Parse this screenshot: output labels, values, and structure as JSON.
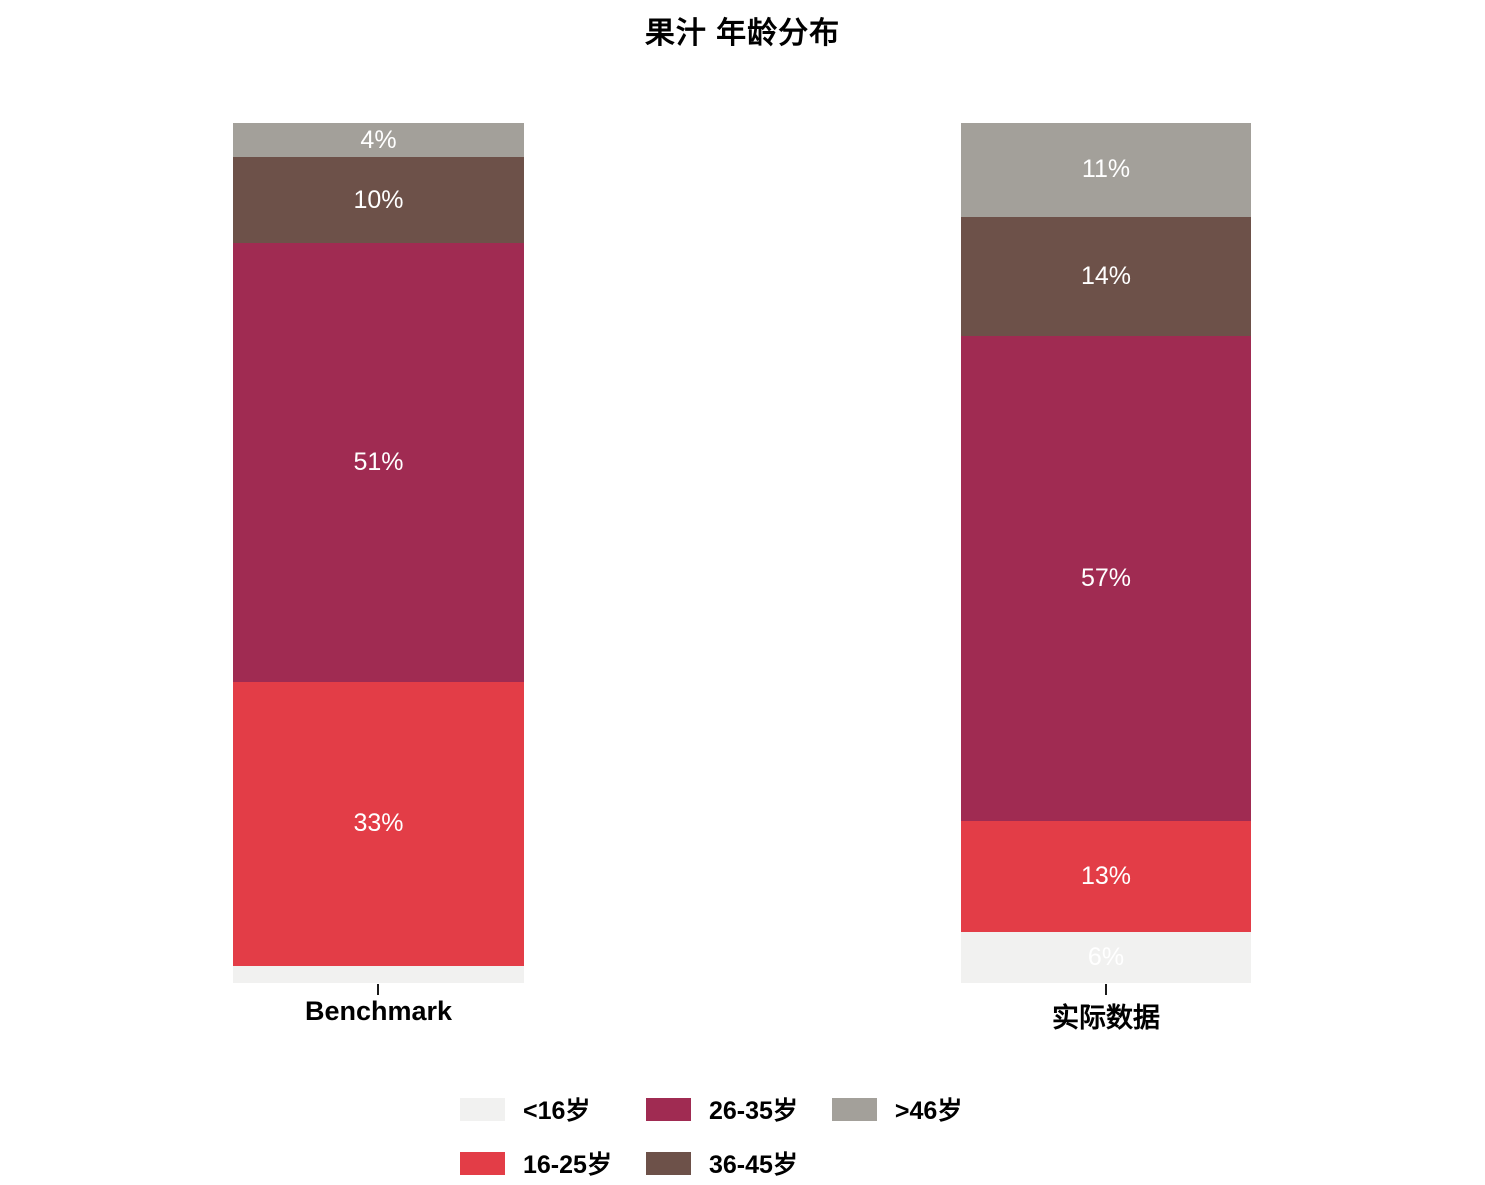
{
  "chart_data": {
    "type": "bar",
    "subtype": "stacked-percentage",
    "title": "果汁 年龄分布",
    "categories": [
      "Benchmark",
      "实际数据"
    ],
    "series": [
      {
        "name": "<16岁",
        "color": "#f1f1f0",
        "values": [
          2,
          6
        ],
        "labels": [
          "",
          "6%"
        ]
      },
      {
        "name": "16-25岁",
        "color": "#e33d47",
        "values": [
          33,
          13
        ],
        "labels": [
          "33%",
          "13%"
        ]
      },
      {
        "name": "26-35岁",
        "color": "#a02b52",
        "values": [
          51,
          57
        ],
        "labels": [
          "51%",
          "57%"
        ]
      },
      {
        "name": "36-45岁",
        "color": "#6d5149",
        "values": [
          10,
          14
        ],
        "labels": [
          "10%",
          "14%"
        ]
      },
      {
        "name": ">46岁",
        "color": "#a3a09a",
        "values": [
          4,
          11
        ],
        "labels": [
          "4%",
          "11%"
        ]
      }
    ],
    "value_label_color": "#ffffff",
    "stack_order_bottom_to_top": [
      "<16岁",
      "16-25岁",
      "26-35岁",
      "36-45岁",
      ">46岁"
    ],
    "legend_position": "bottom",
    "legend_rows": 2,
    "axes": {
      "y_axis_visible": false,
      "x_tick_marks": true
    },
    "background_color": "#ffffff"
  }
}
